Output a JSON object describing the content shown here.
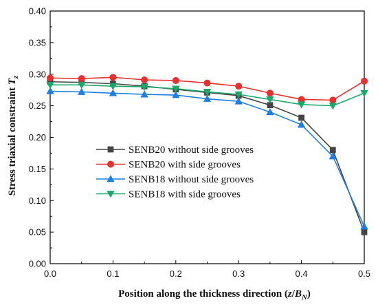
{
  "chart_data": {
    "type": "line",
    "title": "",
    "xlabel": {
      "prefix": "Position along the thickness direction (",
      "var": "z",
      "slash": "/",
      "var2": "B",
      "sub": "N",
      "suffix": ")"
    },
    "ylabel": {
      "prefix": "Stress triaxial constraint ",
      "var": "T",
      "sub": "z"
    },
    "xlim": [
      0.0,
      0.5
    ],
    "ylim": [
      0.0,
      0.4
    ],
    "xticks": [
      "0.0",
      "0.1",
      "0.2",
      "0.3",
      "0.4",
      "0.5"
    ],
    "yticks": [
      "0.00",
      "0.05",
      "0.10",
      "0.15",
      "0.20",
      "0.25",
      "0.30",
      "0.35",
      "0.40"
    ],
    "x": [
      0.0,
      0.05,
      0.1,
      0.15,
      0.2,
      0.25,
      0.3,
      0.35,
      0.4,
      0.45,
      0.5
    ],
    "legend_position": "center-left",
    "grid": false,
    "series": [
      {
        "name": "SENB20 without side grooves",
        "color": "#444444",
        "marker": "square",
        "values": [
          0.288,
          0.287,
          0.285,
          0.281,
          0.276,
          0.271,
          0.266,
          0.251,
          0.231,
          0.18,
          0.05
        ]
      },
      {
        "name": "SENB20 with side grooves",
        "color": "#e8312f",
        "marker": "circle",
        "values": [
          0.294,
          0.293,
          0.295,
          0.291,
          0.29,
          0.286,
          0.281,
          0.27,
          0.26,
          0.259,
          0.289
        ]
      },
      {
        "name": "SENB18 without side grooves",
        "color": "#1f7fe0",
        "marker": "triangle-up",
        "values": [
          0.273,
          0.272,
          0.27,
          0.268,
          0.267,
          0.261,
          0.257,
          0.24,
          0.22,
          0.17,
          0.059
        ]
      },
      {
        "name": "SENB18 with side grooves",
        "color": "#1aa86a",
        "marker": "triangle-down",
        "values": [
          0.283,
          0.283,
          0.281,
          0.28,
          0.277,
          0.272,
          0.268,
          0.26,
          0.252,
          0.25,
          0.27
        ]
      }
    ]
  }
}
